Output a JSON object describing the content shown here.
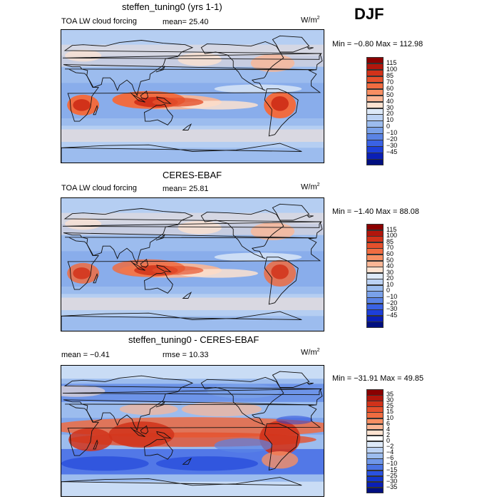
{
  "season": "DJF",
  "panels": [
    {
      "title": "steffen_tuning0 (yrs 1-1)",
      "subtitle": "TOA LW cloud forcing",
      "stat1": "mean=  25.40",
      "stat2": "",
      "units_base": "W/m",
      "units_exp": "2",
      "minmax": "Min =  −0.80 Max = 112.98",
      "levels": [
        "115",
        "100",
        "85",
        "70",
        "60",
        "50",
        "40",
        "30",
        "20",
        "10",
        "0",
        "−10",
        "−20",
        "−30",
        "−45"
      ],
      "colors": [
        "#8b0000",
        "#b2160c",
        "#d1321a",
        "#e5502c",
        "#f06c41",
        "#f78f63",
        "#fbb695",
        "#fde2d0",
        "#dde9f8",
        "#bcd2f3",
        "#9cbcee",
        "#7aa1e9",
        "#5a83e5",
        "#3a62e4",
        "#1d3fd9",
        "#0a1fb6",
        "#000f80"
      ],
      "mode": "mean"
    },
    {
      "title": "CERES-EBAF",
      "subtitle": "TOA LW cloud forcing",
      "stat1": "mean=  25.81",
      "stat2": "",
      "units_base": "W/m",
      "units_exp": "2",
      "minmax": "Min =  −1.40 Max =  88.08",
      "levels": [
        "115",
        "100",
        "85",
        "70",
        "60",
        "50",
        "40",
        "30",
        "20",
        "10",
        "0",
        "−10",
        "−20",
        "−30",
        "−45"
      ],
      "colors": [
        "#8b0000",
        "#b2160c",
        "#d1321a",
        "#e5502c",
        "#f06c41",
        "#f78f63",
        "#fbb695",
        "#fde2d0",
        "#dde9f8",
        "#bcd2f3",
        "#9cbcee",
        "#7aa1e9",
        "#5a83e5",
        "#3a62e4",
        "#1d3fd9",
        "#0a1fb6",
        "#000f80"
      ],
      "mode": "obs"
    },
    {
      "title": "steffen_tuning0 - CERES-EBAF",
      "subtitle": "",
      "stat1": "mean =   −0.41",
      "stat2": "rmse =  10.33",
      "units_base": "W/m",
      "units_exp": "2",
      "minmax": "Min = −31.91 Max =  49.85",
      "levels": [
        "35",
        "30",
        "25",
        "15",
        "10",
        "6",
        "4",
        "2",
        "0",
        "−2",
        "−4",
        "−6",
        "−10",
        "−15",
        "−25",
        "−30",
        "−35"
      ],
      "colors": [
        "#8b0000",
        "#b2160c",
        "#d1321a",
        "#e5502c",
        "#f06c41",
        "#f78f63",
        "#fbb695",
        "#fde2d0",
        "#ffffff",
        "#dde9f8",
        "#bcd2f3",
        "#9cbcee",
        "#6f97e8",
        "#4a73e3",
        "#2a52e0",
        "#1336cc",
        "#0a1fb6",
        "#000f80"
      ],
      "mode": "diff"
    }
  ]
}
